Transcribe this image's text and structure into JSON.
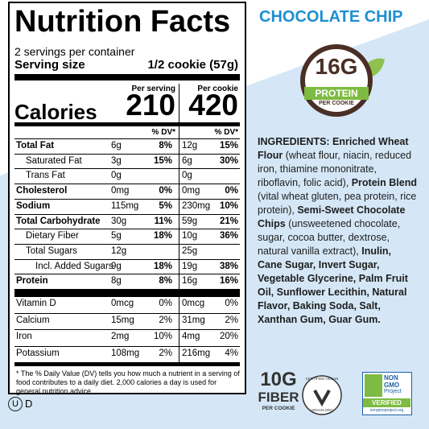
{
  "label": {
    "title": "Nutrition Facts",
    "servings": "2 servings per container",
    "serving_size_label": "Serving size",
    "serving_size": "1/2 cookie (57g)",
    "col_headers": [
      "Per serving",
      "Per cookie"
    ],
    "calories_label": "Calories",
    "calories": [
      "210",
      "420"
    ],
    "dv_header": [
      "% DV*",
      "% DV*"
    ],
    "nutrients": [
      {
        "label": "Total Fat",
        "bold": true,
        "indent": 0,
        "serving": "6g",
        "serving_dv": "8%",
        "cookie": "12g",
        "cookie_dv": "15%"
      },
      {
        "label": "Saturated Fat",
        "bold": false,
        "indent": 1,
        "serving": "3g",
        "serving_dv": "15%",
        "cookie": "6g",
        "cookie_dv": "30%"
      },
      {
        "label": "Trans Fat",
        "bold": false,
        "indent": 1,
        "serving": "0g",
        "cookie": "0g"
      },
      {
        "label": "Cholesterol",
        "bold": true,
        "indent": 0,
        "serving": "0mg",
        "serving_dv": "0%",
        "cookie": "0mg",
        "cookie_dv": "0%"
      },
      {
        "label": "Sodium",
        "bold": true,
        "indent": 0,
        "serving": "115mg",
        "serving_dv": "5%",
        "cookie": "230mg",
        "cookie_dv": "10%"
      },
      {
        "label": "Total Carbohydrate",
        "bold": true,
        "indent": 0,
        "serving": "30g",
        "serving_dv": "11%",
        "cookie": "59g",
        "cookie_dv": "21%"
      },
      {
        "label": "Dietary Fiber",
        "bold": false,
        "indent": 1,
        "serving": "5g",
        "serving_dv": "18%",
        "cookie": "10g",
        "cookie_dv": "36%"
      },
      {
        "label": "Total Sugars",
        "bold": false,
        "indent": 1,
        "serving": "12g",
        "cookie": "25g"
      },
      {
        "label": "Incl. Added Sugars",
        "bold": false,
        "indent": 2,
        "serving": "9g",
        "serving_dv": "18%",
        "cookie": "19g",
        "cookie_dv": "38%"
      },
      {
        "label": "Protein",
        "bold": true,
        "indent": 0,
        "serving": "8g",
        "serving_dv": "8%",
        "cookie": "16g",
        "cookie_dv": "16%"
      }
    ],
    "vitamins": [
      {
        "label": "Vitamin D",
        "serving": "0mcg",
        "serving_dv": "0%",
        "cookie": "0mcg",
        "cookie_dv": "0%"
      },
      {
        "label": "Calcium",
        "serving": "15mg",
        "serving_dv": "2%",
        "cookie": "31mg",
        "cookie_dv": "2%"
      },
      {
        "label": "Iron",
        "serving": "2mg",
        "serving_dv": "10%",
        "cookie": "4mg",
        "cookie_dv": "20%"
      },
      {
        "label": "Potassium",
        "serving": "108mg",
        "serving_dv": "2%",
        "cookie": "216mg",
        "cookie_dv": "4%"
      }
    ],
    "footnote": "* The % Daily Value (DV) tells you how much a nutrient in a serving of food contributes to a daily diet. 2,000 calories a day is used for general nutrition advice."
  },
  "kosher": {
    "symbol": "U",
    "suffix": "D"
  },
  "flavor": "CHOCOLATE CHIP",
  "protein_badge": {
    "amount": "16G",
    "label": "PROTEIN",
    "sub": "PER COOKIE"
  },
  "ingredients": [
    {
      "text": "INGREDIENTS: Enriched Wheat Flour",
      "bold": true
    },
    {
      "text": " (wheat flour, niacin, reduced iron, thiamine mononitrate, riboflavin, folic acid), ",
      "bold": false
    },
    {
      "text": "Protein Blend",
      "bold": true
    },
    {
      "text": " (vital wheat gluten, pea protein, rice protein), ",
      "bold": false
    },
    {
      "text": "Semi-Sweet Chocolate Chips",
      "bold": true
    },
    {
      "text": " (unsweetened chocolate, sugar, cocoa butter, dextrose, natural vanilla extract), ",
      "bold": false
    },
    {
      "text": "Inulin, Cane Sugar, Invert Sugar, Vegetable Glycerine, Palm Fruit Oil, Sunflower Lecithin, Natural Flavor, Baking Soda, Salt, Xanthan Gum, Guar Gum.",
      "bold": true
    }
  ],
  "fiber": {
    "amount": "10G",
    "label": "FIBER",
    "sub": "PER COOKIE"
  },
  "vegan": {
    "top": "CERTIFIED VEGAN",
    "bottom": "VEGAN.ORG"
  },
  "non_gmo": {
    "line1": "NON",
    "line2": "GMO",
    "line3": "Project",
    "verified": "VERIFIED",
    "url": "nongmoproject.org"
  }
}
